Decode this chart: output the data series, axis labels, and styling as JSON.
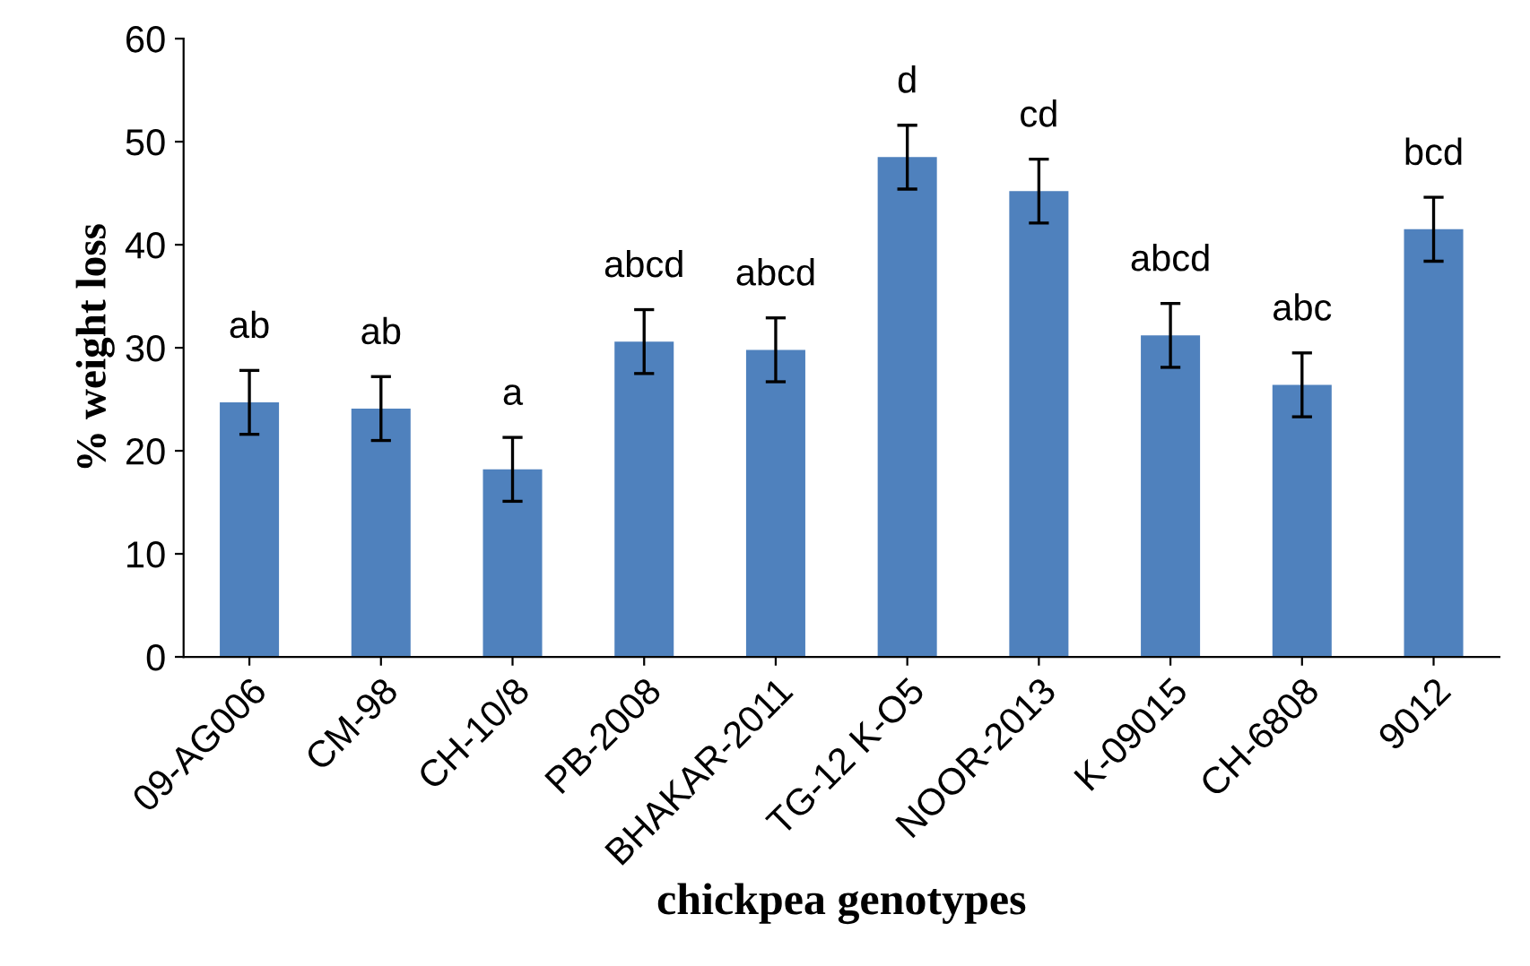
{
  "chart_data": {
    "type": "bar",
    "xlabel": "chickpea genotypes",
    "ylabel": "% weight loss",
    "categories": [
      "09-AG006",
      "CM-98",
      "CH-10/8",
      "PB-2008",
      "BHAKAR-2011",
      "TG-12 K-O5",
      "NOOR-2013",
      "K-09015",
      "CH-6808",
      "9012"
    ],
    "values": [
      24.7,
      24.1,
      18.2,
      30.6,
      29.8,
      48.5,
      45.2,
      31.2,
      26.4,
      41.5
    ],
    "errors": [
      3.1,
      3.1,
      3.1,
      3.1,
      3.1,
      3.1,
      3.1,
      3.1,
      3.1,
      3.1
    ],
    "color": "#4f81bd",
    "ylim": [
      0,
      60
    ],
    "yticks": [
      0,
      10,
      20,
      30,
      40,
      50,
      60
    ],
    "grid": false,
    "annotations": [
      "ab",
      "ab",
      "a",
      "abcd",
      "abcd",
      "d",
      "cd",
      "abcd",
      "abc",
      "bcd"
    ]
  }
}
